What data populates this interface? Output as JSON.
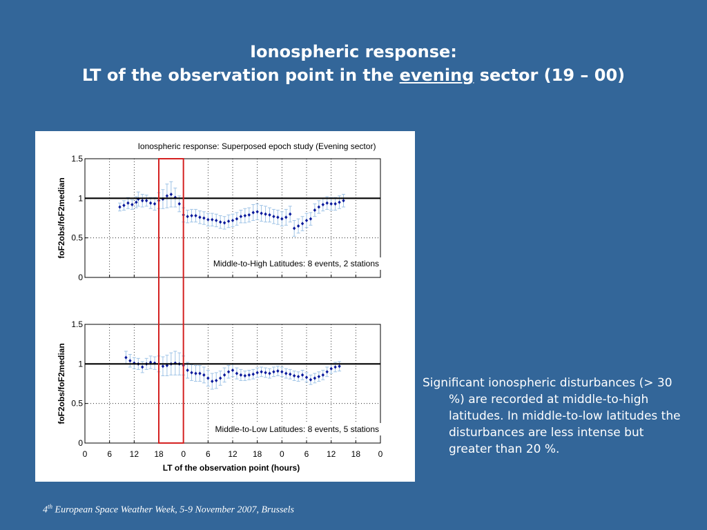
{
  "slide": {
    "title_line1": "Ionospheric response:",
    "title_line2_prefix": "LT of the observation point in the ",
    "title_line2_emph": "evening",
    "title_line2_suffix": " sector (19 – 00)",
    "side_text": "Significant ionospheric disturbances (> 30 %) are recorded at middle-to-high latitudes. In middle-to-low latitudes the disturbances are less intense but greater than 20 %.",
    "footer_ordinal": "4",
    "footer_sup": "th",
    "footer_rest": " European Space Weather Week, 5-9 November 2007, Brussels"
  },
  "colors": {
    "background": "#336699",
    "markers": "#0a1a9c",
    "error_bars": "#9ec3e6",
    "highlight_box": "#d42020",
    "reference_line": "#000000"
  },
  "chart_data": [
    {
      "type": "scatter",
      "title": "Ionospheric response: Superposed epoch study (Evening sector)",
      "annotation": "Middle-to-High Latitudes: 8 events, 2 stations",
      "ylabel": "foF2obs/foF2median",
      "xlabel": "",
      "ylim": [
        0,
        1.5
      ],
      "yticks": [
        "0",
        "0.5",
        "1",
        "1.5"
      ],
      "xlim": [
        0,
        72
      ],
      "xticks": [],
      "reference_line": 1,
      "highlight_x": [
        18,
        24
      ],
      "grid": true,
      "points": [
        [
          8.5,
          0.89
        ],
        [
          9.5,
          0.91
        ],
        [
          10.5,
          0.94
        ],
        [
          11.5,
          0.92
        ],
        [
          12.5,
          0.95
        ],
        [
          13,
          0.99
        ],
        [
          14,
          0.97
        ],
        [
          15,
          0.97
        ],
        [
          16,
          0.94
        ],
        [
          17,
          0.93
        ],
        [
          18,
          0.97
        ],
        [
          19,
          0.99
        ],
        [
          20,
          1.03
        ],
        [
          21,
          1.05
        ],
        [
          22,
          1.01
        ],
        [
          23,
          0.93
        ],
        [
          24,
          0.79
        ],
        [
          25,
          0.77
        ],
        [
          26,
          0.78
        ],
        [
          27,
          0.78
        ],
        [
          28,
          0.76
        ],
        [
          29,
          0.75
        ],
        [
          30,
          0.73
        ],
        [
          31,
          0.73
        ],
        [
          32,
          0.72
        ],
        [
          33,
          0.7
        ],
        [
          34,
          0.69
        ],
        [
          35,
          0.71
        ],
        [
          36,
          0.72
        ],
        [
          37,
          0.74
        ],
        [
          38,
          0.77
        ],
        [
          39,
          0.78
        ],
        [
          40,
          0.79
        ],
        [
          41,
          0.82
        ],
        [
          42,
          0.83
        ],
        [
          43,
          0.81
        ],
        [
          44,
          0.8
        ],
        [
          45,
          0.79
        ],
        [
          46,
          0.77
        ],
        [
          47,
          0.76
        ],
        [
          48,
          0.74
        ],
        [
          49,
          0.76
        ],
        [
          50,
          0.8
        ],
        [
          51,
          0.62
        ],
        [
          52,
          0.65
        ],
        [
          53,
          0.68
        ],
        [
          54,
          0.72
        ],
        [
          55,
          0.74
        ],
        [
          56,
          0.85
        ],
        [
          57,
          0.89
        ],
        [
          58,
          0.92
        ],
        [
          59,
          0.94
        ],
        [
          60,
          0.93
        ],
        [
          61,
          0.93
        ],
        [
          62,
          0.95
        ],
        [
          63,
          0.97
        ]
      ],
      "error": [
        0.05,
        0.06,
        0.07,
        0.06,
        0.07,
        0.09,
        0.08,
        0.07,
        0.07,
        0.08,
        0.1,
        0.12,
        0.15,
        0.16,
        0.12,
        0.1,
        0.09,
        0.08,
        0.08,
        0.08,
        0.08,
        0.08,
        0.08,
        0.08,
        0.08,
        0.08,
        0.08,
        0.08,
        0.08,
        0.08,
        0.08,
        0.09,
        0.09,
        0.1,
        0.1,
        0.1,
        0.1,
        0.09,
        0.09,
        0.09,
        0.09,
        0.1,
        0.1,
        0.1,
        0.09,
        0.09,
        0.09,
        0.08,
        0.08,
        0.08,
        0.08,
        0.08,
        0.08,
        0.08,
        0.08,
        0.08
      ]
    },
    {
      "type": "scatter",
      "title": "",
      "annotation": "Middle-to-Low Latitudes: 8 events, 5 stations",
      "ylabel": "foF2obs/foF2median",
      "xlabel": "LT of the observation point (hours)",
      "ylim": [
        0,
        1.5
      ],
      "yticks": [
        "0",
        "0.5",
        "1",
        "1.5"
      ],
      "xlim": [
        0,
        72
      ],
      "xticks": [
        "0",
        "6",
        "12",
        "18",
        "0",
        "6",
        "12",
        "18",
        "0",
        "6",
        "12",
        "18",
        "0"
      ],
      "reference_line": 1,
      "highlight_x": [
        18,
        24
      ],
      "grid": true,
      "points": [
        [
          10,
          1.08
        ],
        [
          11,
          1.04
        ],
        [
          12,
          1.01
        ],
        [
          13,
          1.0
        ],
        [
          14,
          0.96
        ],
        [
          15,
          1.0
        ],
        [
          16,
          1.02
        ],
        [
          17,
          1.01
        ],
        [
          18,
          1.0
        ],
        [
          19,
          0.97
        ],
        [
          20,
          0.98
        ],
        [
          21,
          1.0
        ],
        [
          22,
          1.01
        ],
        [
          23,
          1.0
        ],
        [
          24,
          0.98
        ],
        [
          25,
          0.92
        ],
        [
          26,
          0.89
        ],
        [
          27,
          0.88
        ],
        [
          28,
          0.88
        ],
        [
          29,
          0.86
        ],
        [
          30,
          0.82
        ],
        [
          31,
          0.78
        ],
        [
          32,
          0.79
        ],
        [
          33,
          0.82
        ],
        [
          34,
          0.86
        ],
        [
          35,
          0.9
        ],
        [
          36,
          0.92
        ],
        [
          37,
          0.88
        ],
        [
          38,
          0.86
        ],
        [
          39,
          0.85
        ],
        [
          40,
          0.86
        ],
        [
          41,
          0.87
        ],
        [
          42,
          0.89
        ],
        [
          43,
          0.9
        ],
        [
          44,
          0.89
        ],
        [
          45,
          0.88
        ],
        [
          46,
          0.9
        ],
        [
          47,
          0.91
        ],
        [
          48,
          0.9
        ],
        [
          49,
          0.88
        ],
        [
          50,
          0.87
        ],
        [
          51,
          0.85
        ],
        [
          52,
          0.84
        ],
        [
          53,
          0.86
        ],
        [
          54,
          0.83
        ],
        [
          55,
          0.8
        ],
        [
          56,
          0.82
        ],
        [
          57,
          0.84
        ],
        [
          58,
          0.86
        ],
        [
          59,
          0.9
        ],
        [
          60,
          0.94
        ],
        [
          61,
          0.96
        ],
        [
          62,
          0.97
        ]
      ],
      "error": [
        0.08,
        0.08,
        0.07,
        0.07,
        0.07,
        0.07,
        0.08,
        0.08,
        0.1,
        0.12,
        0.13,
        0.14,
        0.15,
        0.14,
        0.12,
        0.1,
        0.1,
        0.1,
        0.1,
        0.1,
        0.1,
        0.1,
        0.1,
        0.09,
        0.09,
        0.08,
        0.08,
        0.07,
        0.07,
        0.06,
        0.06,
        0.06,
        0.06,
        0.06,
        0.06,
        0.06,
        0.06,
        0.06,
        0.06,
        0.06,
        0.06,
        0.06,
        0.06,
        0.06,
        0.06,
        0.06,
        0.06,
        0.06,
        0.06,
        0.06,
        0.06,
        0.06,
        0.06
      ]
    }
  ]
}
